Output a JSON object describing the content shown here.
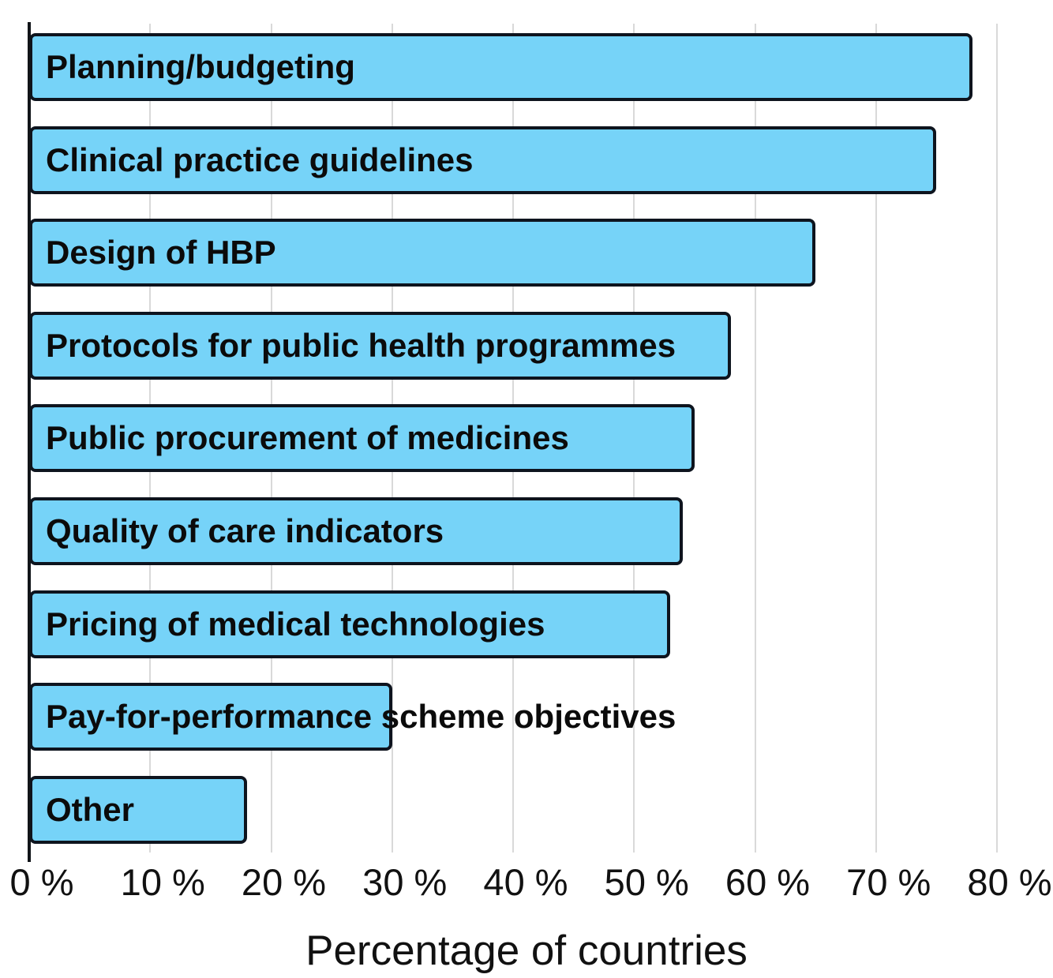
{
  "chart_data": {
    "type": "bar",
    "orientation": "horizontal",
    "title": "",
    "xlabel": "Percentage of countries",
    "ylabel": "",
    "categories": [
      "Planning/budgeting",
      "Clinical practice guidelines",
      "Design of HBP",
      "Protocols for public health programmes",
      "Public procurement of medicines",
      "Quality of care indicators",
      "Pricing of medical technologies",
      "Pay-for-performance scheme objectives",
      "Other"
    ],
    "values": [
      78,
      75,
      65,
      58,
      55,
      54,
      53,
      30,
      18
    ],
    "unit": "%",
    "xlim": [
      0,
      80
    ],
    "xticks": [
      0,
      10,
      20,
      30,
      40,
      50,
      60,
      70,
      80
    ],
    "xtick_labels": [
      "0 %",
      "10 %",
      "20 %",
      "30 %",
      "40 %",
      "50 %",
      "60 %",
      "70 %",
      "80 %"
    ],
    "grid": "vertical-gridlines-on",
    "legend": "none",
    "colors": {
      "bar_fill": "#76d3f8",
      "bar_border": "#0e141e",
      "gridline": "#d9d9d9",
      "axis_line": "#111418",
      "text": "#111111"
    }
  }
}
